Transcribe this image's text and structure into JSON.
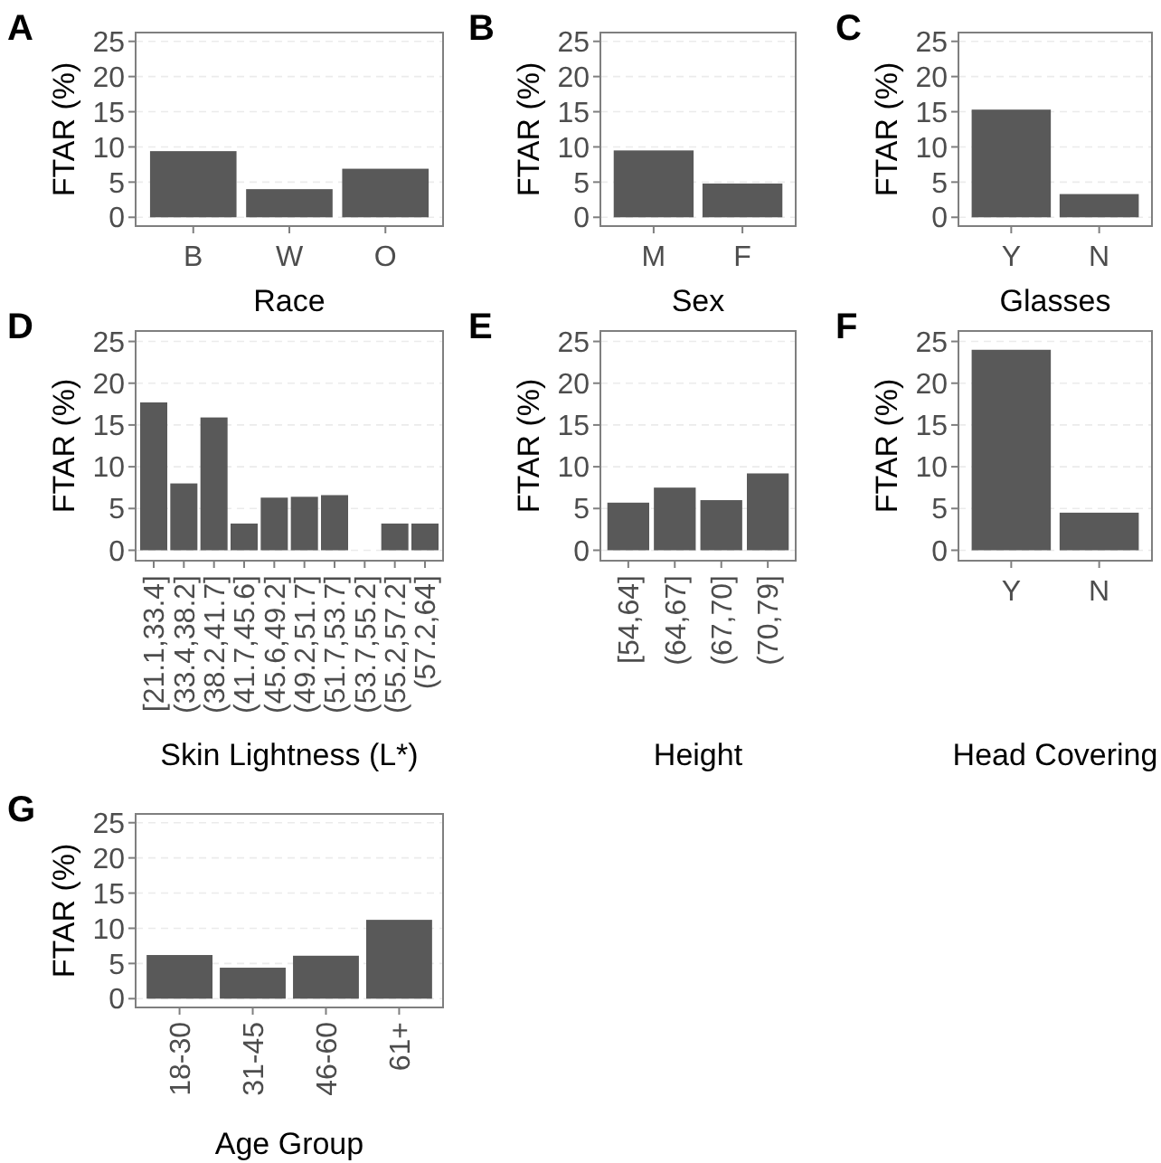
{
  "chart_data": [
    {
      "type": "bar",
      "title": "A",
      "xlabel": "Race",
      "ylabel": "FTAR (%)",
      "categories": [
        "B",
        "W",
        "O"
      ],
      "values": [
        9.4,
        4.0,
        6.9
      ],
      "color": "#595959",
      "ylim": [
        -1.25,
        26.25
      ],
      "yticks": [
        0,
        5,
        10,
        15,
        20,
        25
      ],
      "grid": "y"
    },
    {
      "type": "bar",
      "title": "B",
      "xlabel": "Sex",
      "ylabel": "FTAR (%)",
      "categories": [
        "M",
        "F"
      ],
      "values": [
        9.5,
        4.8
      ],
      "color": "#595959",
      "ylim": [
        -1.25,
        26.25
      ],
      "yticks": [
        0,
        5,
        10,
        15,
        20,
        25
      ],
      "grid": "y"
    },
    {
      "type": "bar",
      "title": "C",
      "xlabel": "Glasses",
      "ylabel": "FTAR (%)",
      "categories": [
        "Y",
        "N"
      ],
      "values": [
        15.3,
        3.3
      ],
      "color": "#595959",
      "ylim": [
        -1.25,
        26.25
      ],
      "yticks": [
        0,
        5,
        10,
        15,
        20,
        25
      ],
      "grid": "y"
    },
    {
      "type": "bar",
      "title": "D",
      "xlabel": "Skin Lightness (L*)",
      "ylabel": "FTAR (%)",
      "categories": [
        "[21.1,33.4]",
        "(33.4,38.2]",
        "(38.2,41.7]",
        "(41.7,45.6]",
        "(45.6,49.2]",
        "(49.2,51.7]",
        "(51.7,53.7]",
        "(53.7,55.2]",
        "(55.2,57.2]",
        "(57.2,64]"
      ],
      "values": [
        17.7,
        8.0,
        15.9,
        3.2,
        6.3,
        6.4,
        6.6,
        0,
        3.2,
        3.2
      ],
      "color": "#595959",
      "ylim": [
        -1.25,
        26.25
      ],
      "yticks": [
        0,
        5,
        10,
        15,
        20,
        25
      ],
      "grid": "y"
    },
    {
      "type": "bar",
      "title": "E",
      "xlabel": "Height",
      "ylabel": "FTAR (%)",
      "categories": [
        "[54,64]",
        "(64,67]",
        "(67,70]",
        "(70,79]"
      ],
      "values": [
        5.7,
        7.5,
        6.0,
        9.2
      ],
      "color": "#595959",
      "ylim": [
        -1.25,
        26.25
      ],
      "yticks": [
        0,
        5,
        10,
        15,
        20,
        25
      ],
      "grid": "y"
    },
    {
      "type": "bar",
      "title": "F",
      "xlabel": "Head Covering",
      "ylabel": "FTAR (%)",
      "categories": [
        "Y",
        "N"
      ],
      "values": [
        24.0,
        4.5
      ],
      "color": "#595959",
      "ylim": [
        -1.25,
        26.25
      ],
      "yticks": [
        0,
        5,
        10,
        15,
        20,
        25
      ],
      "grid": "y"
    },
    {
      "type": "bar",
      "title": "G",
      "xlabel": "Age Group",
      "ylabel": "FTAR (%)",
      "categories": [
        "18-30",
        "31-45",
        "46-60",
        "61+"
      ],
      "values": [
        6.2,
        4.4,
        6.1,
        11.2
      ],
      "color": "#595959",
      "ylim": [
        -1.25,
        26.25
      ],
      "yticks": [
        0,
        5,
        10,
        15,
        20,
        25
      ],
      "grid": "y"
    }
  ]
}
